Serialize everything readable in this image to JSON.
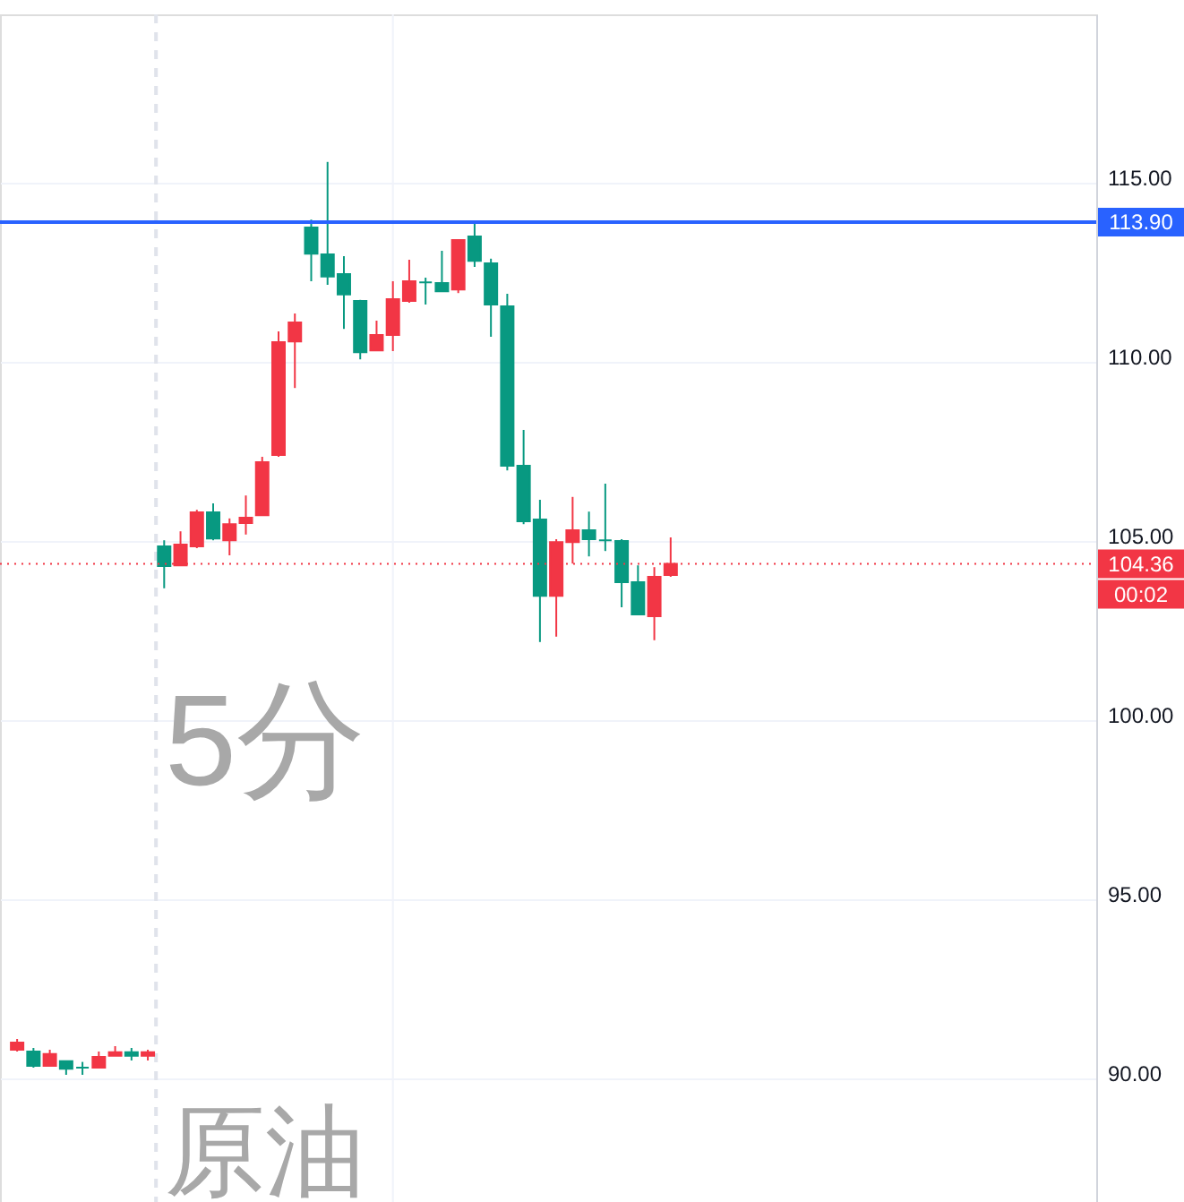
{
  "chart_data": {
    "type": "candlestick",
    "categories": [
      null,
      null,
      null,
      null,
      null,
      null,
      null,
      null,
      null,
      null,
      null,
      null,
      null,
      null,
      null,
      null,
      null,
      null,
      null,
      null,
      null,
      null,
      null,
      null,
      null,
      null,
      null,
      null,
      null,
      null,
      null,
      null,
      null,
      null,
      null,
      null,
      null,
      null,
      null,
      null,
      null,
      null,
      null,
      null,
      null,
      null,
      null,
      null,
      null,
      null,
      null,
      null,
      null,
      null,
      null,
      null,
      null,
      null,
      null,
      null,
      null,
      null,
      null,
      null,
      null,
      null
    ],
    "ohlc": [
      [
        90.8,
        91.1,
        90.75,
        91.0
      ],
      [
        90.75,
        90.85,
        90.3,
        90.35
      ],
      [
        90.35,
        90.8,
        90.35,
        90.68
      ],
      [
        90.48,
        90.48,
        90.1,
        90.27
      ],
      [
        90.3,
        90.46,
        90.1,
        90.3
      ],
      [
        90.3,
        90.75,
        90.3,
        90.6
      ],
      [
        90.63,
        90.9,
        90.63,
        90.73
      ],
      [
        90.73,
        90.85,
        90.5,
        90.63
      ],
      [
        90.63,
        90.8,
        90.5,
        90.73
      ],
      [
        104.85,
        105.02,
        103.68,
        104.3
      ],
      [
        104.32,
        105.27,
        104.32,
        104.9
      ],
      [
        104.85,
        105.87,
        104.8,
        105.8
      ],
      [
        105.8,
        106.05,
        105.02,
        105.07
      ],
      [
        105.02,
        105.63,
        104.6,
        105.47
      ],
      [
        105.5,
        106.27,
        105.18,
        105.65
      ],
      [
        105.72,
        107.35,
        105.72,
        107.2
      ],
      [
        107.4,
        110.85,
        107.35,
        110.55
      ],
      [
        110.57,
        111.35,
        109.27,
        111.1
      ],
      [
        113.75,
        113.97,
        112.25,
        113.02
      ],
      [
        113.0,
        115.58,
        112.15,
        112.38
      ],
      [
        112.45,
        112.95,
        110.92,
        111.88
      ],
      [
        111.7,
        111.73,
        110.07,
        110.27
      ],
      [
        110.32,
        111.15,
        110.32,
        110.75
      ],
      [
        110.75,
        112.25,
        110.3,
        111.75
      ],
      [
        111.7,
        112.85,
        111.65,
        112.25
      ],
      [
        112.22,
        112.35,
        111.6,
        112.22
      ],
      [
        112.2,
        113.1,
        111.97,
        111.97
      ],
      [
        112.02,
        113.4,
        111.92,
        113.4
      ],
      [
        113.5,
        113.9,
        112.65,
        112.82
      ],
      [
        112.75,
        112.88,
        110.7,
        111.6
      ],
      [
        111.55,
        111.9,
        106.97,
        107.1
      ],
      [
        107.1,
        108.1,
        105.47,
        105.55
      ],
      [
        105.6,
        106.15,
        102.18,
        103.47
      ],
      [
        103.47,
        105.05,
        102.33,
        104.97
      ],
      [
        104.97,
        106.23,
        104.37,
        105.3
      ],
      [
        105.3,
        105.82,
        104.57,
        105.05
      ],
      [
        105.02,
        106.6,
        104.72,
        105.02
      ],
      [
        105.0,
        105.05,
        103.15,
        103.85
      ],
      [
        103.85,
        104.32,
        102.93,
        102.95
      ],
      [
        102.9,
        104.27,
        102.23,
        104.0
      ],
      [
        104.05,
        105.1,
        104.0,
        104.36
      ],
      null,
      null,
      null,
      null,
      null,
      null,
      null,
      null,
      null,
      null,
      null,
      null,
      null,
      null,
      null,
      null,
      null,
      null,
      null,
      null,
      null,
      null,
      null,
      null,
      null
    ],
    "colors": [
      "#f23645",
      "#089981",
      "#f23645",
      "#089981",
      "#089981",
      "#f23645",
      "#f23645",
      "#089981",
      "#f23645",
      "#089981",
      "#f23645",
      "#f23645",
      "#089981",
      "#f23645",
      "#f23645",
      "#f23645",
      "#f23645",
      "#f23645",
      "#089981",
      "#089981",
      "#089981",
      "#089981",
      "#f23645",
      "#f23645",
      "#f23645",
      "#089981",
      "#089981",
      "#f23645",
      "#089981",
      "#089981",
      "#089981",
      "#089981",
      "#089981",
      "#f23645",
      "#f23645",
      "#089981",
      "#089981",
      "#089981",
      "#089981",
      "#f23645",
      "#f23645",
      null,
      null,
      null,
      null,
      null,
      null,
      null,
      null,
      null,
      null,
      null,
      null,
      null,
      null,
      null,
      null,
      null,
      null,
      null,
      null,
      null,
      null,
      null,
      null,
      null
    ],
    "ylim": [
      86.55,
      119.7
    ],
    "yticks": [
      {
        "value": 90,
        "label": "90.00"
      },
      {
        "value": 95,
        "label": "95.00"
      },
      {
        "value": 100,
        "label": "100.00"
      },
      {
        "value": 105,
        "label": "105.00"
      },
      {
        "value": 110,
        "label": "110.00"
      },
      {
        "value": 115,
        "label": "115.00"
      }
    ],
    "grid": "y",
    "ref_lines": [
      {
        "axis": "y",
        "value": 113.9,
        "label": "113.90",
        "color": "#2962ff",
        "line_style": "solid"
      },
      {
        "axis": "y",
        "value": 104.36,
        "label": "104.36",
        "color": "#f23645",
        "line_style": "dotted"
      }
    ],
    "annotations": [
      "5分",
      "原油",
      "00:02"
    ]
  }
}
